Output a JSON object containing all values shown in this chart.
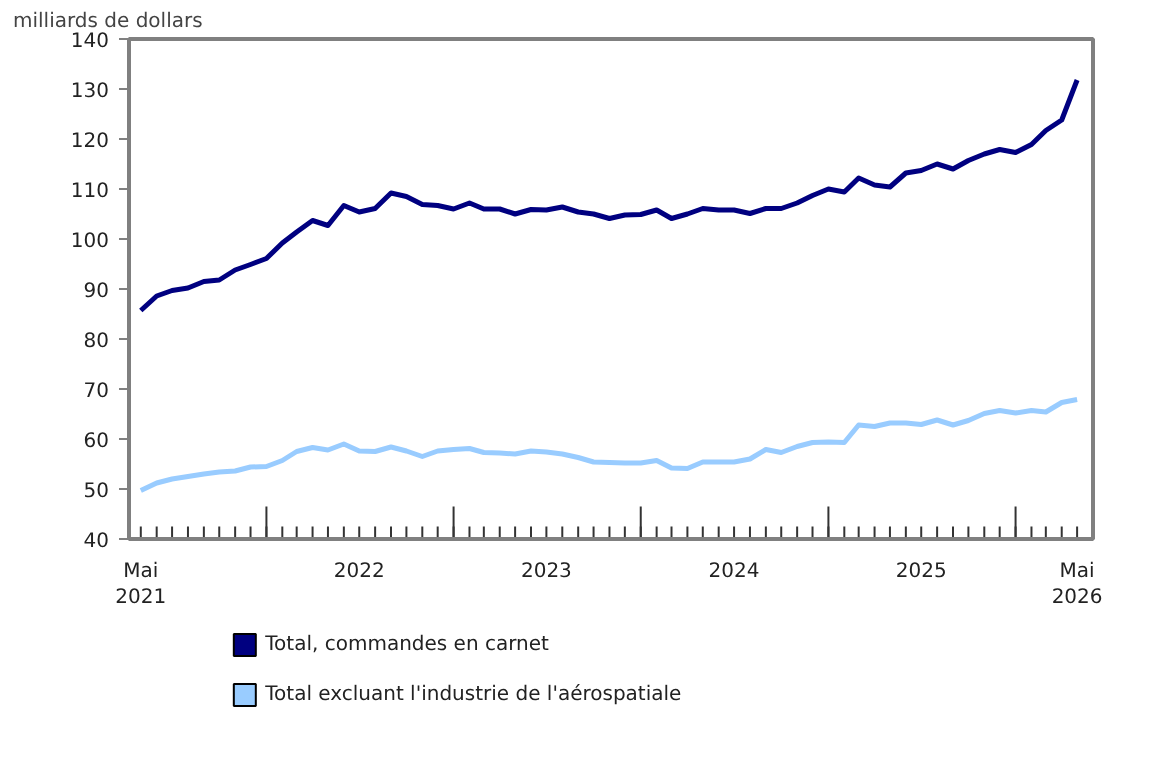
{
  "chart_data": {
    "type": "line",
    "ylabel": "milliards de dollars",
    "x": [
      "2021-05",
      "2021-06",
      "2021-07",
      "2021-08",
      "2021-09",
      "2021-10",
      "2021-11",
      "2021-12",
      "2022-01",
      "2022-02",
      "2022-03",
      "2022-04",
      "2022-05",
      "2022-06",
      "2022-07",
      "2022-08",
      "2022-09",
      "2022-10",
      "2022-11",
      "2022-12",
      "2023-01",
      "2023-02",
      "2023-03",
      "2023-04",
      "2023-05",
      "2023-06",
      "2023-07",
      "2023-08",
      "2023-09",
      "2023-10",
      "2023-11",
      "2023-12",
      "2024-01",
      "2024-02",
      "2024-03",
      "2024-04",
      "2024-05",
      "2024-06",
      "2024-07",
      "2024-08",
      "2024-09",
      "2024-10",
      "2024-11",
      "2024-12",
      "2025-01",
      "2025-02",
      "2025-03",
      "2025-04",
      "2025-05",
      "2025-06",
      "2025-07",
      "2025-08",
      "2025-09",
      "2025-10",
      "2025-11",
      "2025-12",
      "2026-01",
      "2026-02",
      "2026-03",
      "2026-04",
      "2026-05"
    ],
    "series": [
      {
        "name": "Total, commandes en carnet",
        "color": "#000080",
        "values": [
          85.7,
          88.6,
          89.7,
          90.2,
          91.5,
          91.8,
          93.8,
          94.9,
          96.1,
          99.2,
          101.4,
          103.7,
          102.7,
          106.7,
          105.4,
          106.1,
          109.2,
          108.5,
          106.9,
          106.7,
          106.0,
          107.2,
          106.0,
          106.0,
          105.0,
          105.9,
          105.8,
          106.4,
          105.4,
          105.0,
          104.1,
          104.8,
          104.9,
          105.8,
          104.1,
          105.0,
          106.1,
          105.8,
          105.8,
          105.1,
          106.1,
          106.1,
          107.2,
          108.7,
          110.0,
          109.4,
          112.2,
          110.8,
          110.4,
          113.2,
          113.7,
          115.0,
          114.0,
          115.7,
          117.0,
          117.9,
          117.3,
          118.9,
          121.7,
          123.8,
          131.8
        ]
      },
      {
        "name": "Total excluant l'industrie de l'aérospatiale",
        "color": "#99ccff",
        "values": [
          49.7,
          51.2,
          52.0,
          52.5,
          53.0,
          53.4,
          53.6,
          54.4,
          54.5,
          55.7,
          57.5,
          58.3,
          57.8,
          59.0,
          57.6,
          57.5,
          58.4,
          57.6,
          56.5,
          57.6,
          57.9,
          58.1,
          57.3,
          57.2,
          57.0,
          57.6,
          57.4,
          57.0,
          56.3,
          55.4,
          55.3,
          55.2,
          55.2,
          55.7,
          54.2,
          54.1,
          55.4,
          55.4,
          55.4,
          56.0,
          57.9,
          57.3,
          58.5,
          59.3,
          59.4,
          59.3,
          62.8,
          62.5,
          63.2,
          63.2,
          62.9,
          63.8,
          62.8,
          63.7,
          65.1,
          65.7,
          65.2,
          65.7,
          65.4,
          67.3,
          67.9
        ]
      }
    ],
    "xlim": [
      "2021-04-08",
      "2026-06-01"
    ],
    "xticks": [
      {
        "value": "2021-05",
        "label": "Mai\n2021"
      },
      {
        "value": "2022-01",
        "label": null
      },
      {
        "value": "2022-07",
        "label": "2022"
      },
      {
        "value": "2023-01",
        "label": null
      },
      {
        "value": "2023-07",
        "label": "2023"
      },
      {
        "value": "2024-01",
        "label": null
      },
      {
        "value": "2024-07",
        "label": "2024"
      },
      {
        "value": "2025-01",
        "label": null
      },
      {
        "value": "2025-07",
        "label": "2025"
      },
      {
        "value": "2026-01",
        "label": null
      },
      {
        "value": "2026-05",
        "label": "Mai\n2026"
      }
    ],
    "ylim": [
      40,
      140
    ],
    "yticks": [
      40,
      50,
      60,
      70,
      80,
      90,
      100,
      110,
      120,
      130,
      140
    ],
    "grid": false,
    "legend": "bottom",
    "marker": "none",
    "line_style": "solid"
  }
}
